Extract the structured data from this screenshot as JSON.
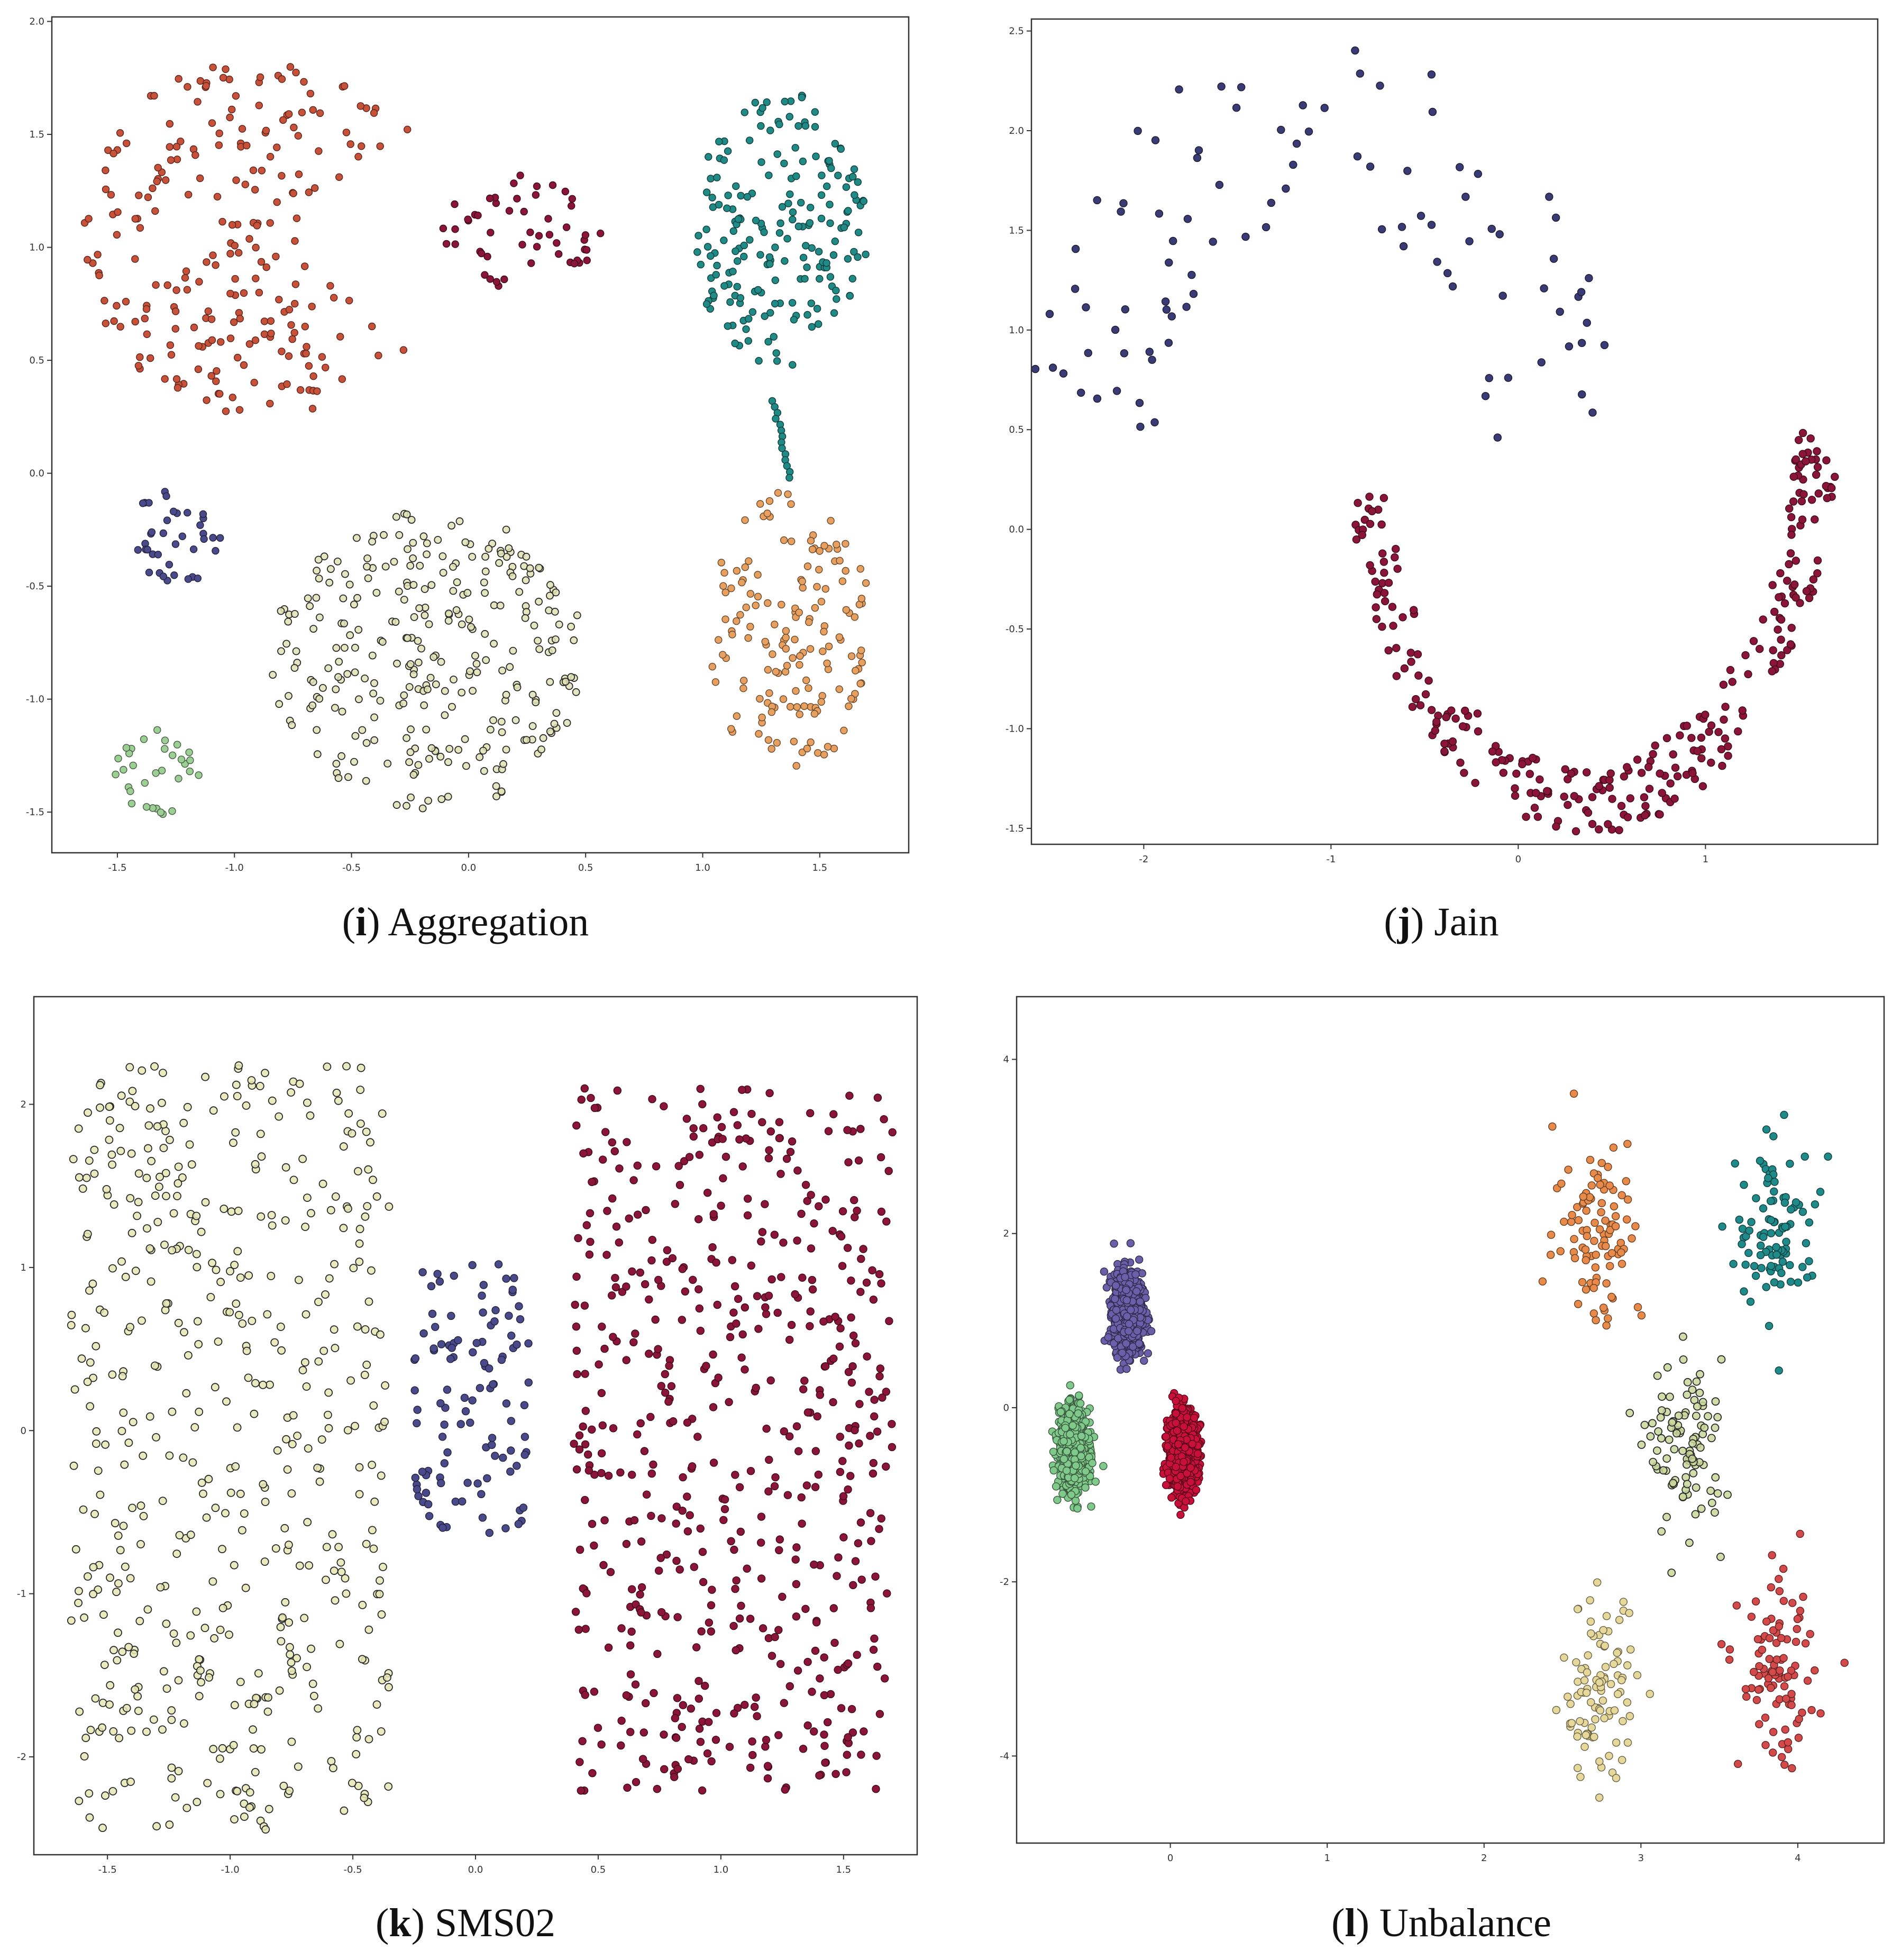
{
  "chart_data": [
    {
      "type": "scatter",
      "label": "i",
      "title": "Aggregation",
      "xlim": [
        -1.78,
        1.88
      ],
      "ylim": [
        -1.68,
        2.02
      ],
      "xticks": [
        -1.5,
        -1.0,
        -0.5,
        0.0,
        0.5,
        1.0,
        1.5
      ],
      "yticks": [
        -1.5,
        -1.0,
        -0.5,
        0.0,
        0.5,
        1.0,
        1.5,
        2.0
      ],
      "xtick_labels": [
        "-1.5",
        "-1.0",
        "-0.5",
        "0.0",
        "0.5",
        "1.0",
        "1.5"
      ],
      "ytick_labels": [
        "-1.5",
        "-1.0",
        "-0.5",
        "0.0",
        "0.5",
        "1.0",
        "1.5",
        "2.0"
      ],
      "clusters": [
        {
          "color": "#c8513a",
          "hollow": false,
          "n": 240,
          "shape": "pacman",
          "cx": -0.88,
          "cy": 1.05,
          "r": 0.78
        },
        {
          "color": "#8b1538",
          "hollow": false,
          "n": 52,
          "shape": "ellipse",
          "cx": 0.23,
          "cy": 1.08,
          "rx": 0.34,
          "ry": 0.27
        },
        {
          "color": "#1f8a86",
          "hollow": false,
          "n": 200,
          "shape": "ellipse",
          "cx": 1.33,
          "cy": 1.08,
          "rx": 0.38,
          "ry": 0.62
        },
        {
          "color": "#1f8a86",
          "hollow": false,
          "n": 14,
          "shape": "bridge",
          "x0": 1.3,
          "y0": 0.32,
          "x1": 1.37,
          "y1": -0.02
        },
        {
          "color": "#e8a060",
          "hollow": false,
          "n": 160,
          "shape": "ellipse",
          "cx": 1.37,
          "cy": -0.7,
          "rx": 0.36,
          "ry": 0.62
        },
        {
          "color": "#4a4a8a",
          "hollow": false,
          "n": 38,
          "shape": "ellipse",
          "cx": -1.25,
          "cy": -0.28,
          "rx": 0.21,
          "ry": 0.22
        },
        {
          "color": "#dfe2b4",
          "hollow": true,
          "n": 300,
          "shape": "ellipse",
          "cx": -0.17,
          "cy": -0.83,
          "rx": 0.67,
          "ry": 0.67
        },
        {
          "color": "#9ccf94",
          "hollow": false,
          "n": 32,
          "shape": "ellipse",
          "cx": -1.32,
          "cy": -1.32,
          "rx": 0.19,
          "ry": 0.19
        }
      ]
    },
    {
      "type": "scatter",
      "label": "j",
      "title": "Jain",
      "xlim": [
        -2.6,
        1.92
      ],
      "ylim": [
        -1.58,
        2.56
      ],
      "xticks": [
        -2,
        -1,
        0,
        1
      ],
      "yticks": [
        -1.5,
        -1.0,
        -0.5,
        0.0,
        0.5,
        1.0,
        1.5,
        2.0,
        2.5
      ],
      "xtick_labels": [
        "-2",
        "-1",
        "0",
        "1"
      ],
      "ytick_labels": [
        "-1.5",
        "-1.0",
        "-0.5",
        "0.0",
        "0.5",
        "1.0",
        "1.5",
        "2.0",
        "2.5"
      ],
      "clusters": [
        {
          "color": "#3a3a74",
          "hollow": false,
          "n": 95,
          "shape": "arc-up",
          "cx": -1.05,
          "cy": 0.35,
          "rx": 1.25,
          "ry": 1.65,
          "t0": 0.08,
          "t1": 3.05,
          "spread": 0.28
        },
        {
          "color": "#8b1538",
          "hollow": false,
          "n": 280,
          "shape": "arc-down",
          "cx": 0.38,
          "cy": 0.6,
          "rx": 1.22,
          "ry": 1.95,
          "t0": 3.35,
          "t1": 6.22,
          "spread": 0.09
        }
      ]
    },
    {
      "type": "scatter",
      "label": "k",
      "title": "SMS02",
      "xlim": [
        -1.8,
        1.8
      ],
      "ylim": [
        -2.6,
        2.66
      ],
      "xticks": [
        -1.5,
        -1.0,
        -0.5,
        0.0,
        0.5,
        1.0,
        1.5
      ],
      "yticks": [
        -2,
        -1,
        0,
        1,
        2
      ],
      "xtick_labels": [
        "-1.5",
        "-1.0",
        "-0.5",
        "0.0",
        "0.5",
        "1.0",
        "1.5"
      ],
      "ytick_labels": [
        "-2",
        "-1",
        "0",
        "1",
        "2"
      ],
      "clusters": [
        {
          "color": "#e6e6b4",
          "hollow": true,
          "n": 520,
          "shape": "rect",
          "x0": -1.65,
          "x1": -0.35,
          "y0": -2.45,
          "y1": 2.25
        },
        {
          "color": "#4a4a8a",
          "hollow": false,
          "n": 110,
          "shape": "rect",
          "x0": -0.25,
          "x1": 0.22,
          "y0": -0.65,
          "y1": 1.02
        },
        {
          "color": "#8b1538",
          "hollow": false,
          "n": 560,
          "shape": "rect",
          "x0": 0.4,
          "x1": 1.7,
          "y0": -2.22,
          "y1": 2.1
        }
      ]
    },
    {
      "type": "scatter",
      "label": "l",
      "title": "Unbalance",
      "xlim": [
        -0.98,
        4.55
      ],
      "ylim": [
        -5.0,
        4.72
      ],
      "xticks": [
        0,
        1,
        2,
        3,
        4
      ],
      "yticks": [
        -4,
        -2,
        0,
        2,
        4
      ],
      "xtick_labels": [
        "0",
        "1",
        "2",
        "3",
        "4"
      ],
      "ytick_labels": [
        "-4",
        "-2",
        "0",
        "2",
        "4"
      ],
      "clusters": [
        {
          "color": "#6a5fa8",
          "hollow": false,
          "n": 1000,
          "shape": "gauss",
          "cx": -0.27,
          "cy": 1.1,
          "sx": 0.045,
          "sy": 0.22
        },
        {
          "color": "#7fc98a",
          "hollow": false,
          "n": 1000,
          "shape": "gauss",
          "cx": -0.62,
          "cy": -0.47,
          "sx": 0.045,
          "sy": 0.22
        },
        {
          "color": "#c8103a",
          "hollow": false,
          "n": 1000,
          "shape": "gauss",
          "cx": 0.08,
          "cy": -0.5,
          "sx": 0.045,
          "sy": 0.22
        },
        {
          "color": "#e88a4a",
          "hollow": false,
          "n": 100,
          "shape": "gauss",
          "cx": 2.73,
          "cy": 2.05,
          "sx": 0.14,
          "sy": 0.55
        },
        {
          "color": "#1f8a8a",
          "hollow": false,
          "n": 100,
          "shape": "gauss",
          "cx": 3.87,
          "cy": 2.05,
          "sx": 0.13,
          "sy": 0.48
        },
        {
          "color": "#c9d79a",
          "hollow": true,
          "n": 100,
          "shape": "gauss",
          "cx": 3.29,
          "cy": -0.5,
          "sx": 0.12,
          "sy": 0.5
        },
        {
          "color": "#e6d89a",
          "hollow": false,
          "n": 100,
          "shape": "gauss",
          "cx": 2.73,
          "cy": -3.25,
          "sx": 0.12,
          "sy": 0.5
        },
        {
          "color": "#d44a4a",
          "hollow": false,
          "n": 100,
          "shape": "gauss",
          "cx": 3.87,
          "cy": -3.1,
          "sx": 0.12,
          "sy": 0.5
        }
      ]
    }
  ],
  "captions": [
    {
      "letter": "i",
      "open": "(",
      "close": ")",
      "text": " Aggregation"
    },
    {
      "letter": "j",
      "open": "(",
      "close": ")",
      "text": " Jain"
    },
    {
      "letter": "k",
      "open": "(",
      "close": ")",
      "text": " SMS02"
    },
    {
      "letter": "l",
      "open": "(",
      "close": ")",
      "text": " Unbalance"
    }
  ]
}
